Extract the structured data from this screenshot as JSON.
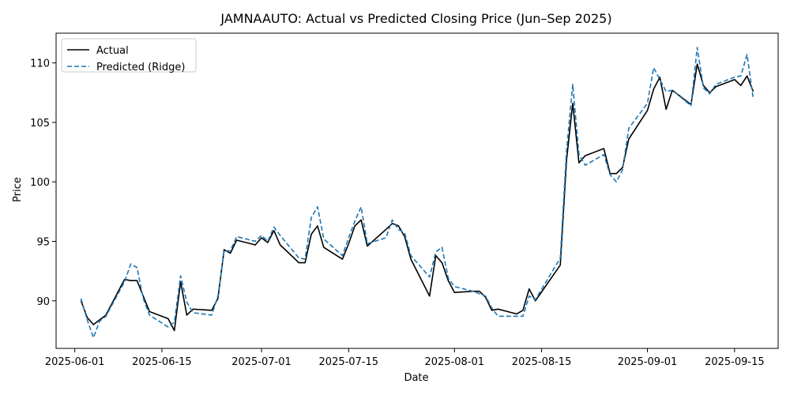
{
  "chart_data": {
    "type": "line",
    "title": "JAMNAAUTO: Actual vs Predicted Closing Price (Jun–Sep 2025)",
    "xlabel": "Date",
    "ylabel": "Price",
    "xlim": [
      "2025-05-29",
      "2025-09-22"
    ],
    "ylim": [
      86.0,
      112.5
    ],
    "x_ticks": [
      "2025-06-01",
      "2025-06-15",
      "2025-07-01",
      "2025-07-15",
      "2025-08-01",
      "2025-08-15",
      "2025-09-01",
      "2025-09-15"
    ],
    "y_ticks": [
      90,
      95,
      100,
      105,
      110
    ],
    "grid": false,
    "legend_position": "upper-left",
    "x": [
      "2025-06-02",
      "2025-06-03",
      "2025-06-04",
      "2025-06-05",
      "2025-06-06",
      "2025-06-09",
      "2025-06-10",
      "2025-06-11",
      "2025-06-12",
      "2025-06-13",
      "2025-06-16",
      "2025-06-17",
      "2025-06-18",
      "2025-06-19",
      "2025-06-20",
      "2025-06-23",
      "2025-06-24",
      "2025-06-25",
      "2025-06-26",
      "2025-06-27",
      "2025-06-30",
      "2025-07-01",
      "2025-07-02",
      "2025-07-03",
      "2025-07-04",
      "2025-07-07",
      "2025-07-08",
      "2025-07-09",
      "2025-07-10",
      "2025-07-11",
      "2025-07-14",
      "2025-07-15",
      "2025-07-16",
      "2025-07-17",
      "2025-07-18",
      "2025-07-21",
      "2025-07-22",
      "2025-07-23",
      "2025-07-24",
      "2025-07-25",
      "2025-07-28",
      "2025-07-29",
      "2025-07-30",
      "2025-07-31",
      "2025-08-01",
      "2025-08-04",
      "2025-08-05",
      "2025-08-06",
      "2025-08-07",
      "2025-08-08",
      "2025-08-11",
      "2025-08-12",
      "2025-08-13",
      "2025-08-14",
      "2025-08-18",
      "2025-08-19",
      "2025-08-20",
      "2025-08-21",
      "2025-08-22",
      "2025-08-25",
      "2025-08-26",
      "2025-08-27",
      "2025-08-28",
      "2025-08-29",
      "2025-09-01",
      "2025-09-02",
      "2025-09-03",
      "2025-09-04",
      "2025-09-05",
      "2025-09-08",
      "2025-09-09",
      "2025-09-10",
      "2025-09-11",
      "2025-09-12",
      "2025-09-15",
      "2025-09-16",
      "2025-09-17",
      "2025-09-18"
    ],
    "series": [
      {
        "name": "Actual",
        "color": "#000000",
        "dash": "solid",
        "values": [
          90.0,
          88.6,
          88.0,
          88.4,
          88.8,
          91.8,
          91.7,
          91.7,
          90.4,
          89.1,
          88.5,
          87.5,
          91.6,
          88.8,
          89.3,
          89.2,
          90.2,
          94.3,
          94.0,
          95.1,
          94.7,
          95.3,
          94.9,
          95.9,
          94.7,
          93.2,
          93.2,
          95.6,
          96.3,
          94.5,
          93.5,
          94.8,
          96.3,
          96.8,
          94.6,
          96.0,
          96.5,
          96.3,
          95.4,
          93.5,
          90.4,
          93.8,
          93.2,
          91.7,
          90.7,
          90.8,
          90.8,
          90.3,
          89.2,
          89.3,
          88.9,
          89.2,
          91.0,
          90.0,
          93.0,
          101.8,
          106.6,
          101.6,
          102.2,
          102.8,
          100.7,
          100.7,
          101.2,
          103.6,
          106.0,
          107.8,
          108.8,
          106.1,
          107.7,
          106.5,
          109.9,
          108.1,
          107.5,
          108.0,
          108.6,
          108.1,
          108.9,
          107.6
        ]
      },
      {
        "name": "Predicted (Ridge)",
        "color": "#1f77b4",
        "dash": "dashed",
        "values": [
          90.2,
          88.4,
          86.9,
          88.3,
          88.7,
          91.6,
          93.1,
          92.8,
          90.2,
          88.8,
          87.8,
          88.2,
          92.1,
          89.9,
          89.0,
          88.8,
          90.4,
          94.2,
          94.2,
          95.4,
          95.0,
          95.5,
          95.0,
          96.2,
          95.5,
          93.6,
          93.5,
          97.0,
          97.9,
          95.2,
          93.8,
          95.3,
          96.7,
          97.9,
          94.8,
          95.3,
          96.8,
          96.0,
          95.7,
          93.8,
          92.0,
          94.1,
          94.5,
          91.9,
          91.2,
          90.8,
          90.6,
          90.4,
          89.4,
          88.7,
          88.7,
          88.7,
          90.4,
          90.1,
          93.6,
          102.6,
          108.2,
          102.3,
          101.4,
          102.3,
          100.6,
          100.0,
          101.0,
          104.5,
          106.6,
          109.6,
          108.6,
          107.6,
          107.7,
          106.4,
          111.3,
          107.9,
          107.4,
          108.2,
          108.8,
          108.9,
          110.7,
          107.0
        ]
      }
    ]
  }
}
